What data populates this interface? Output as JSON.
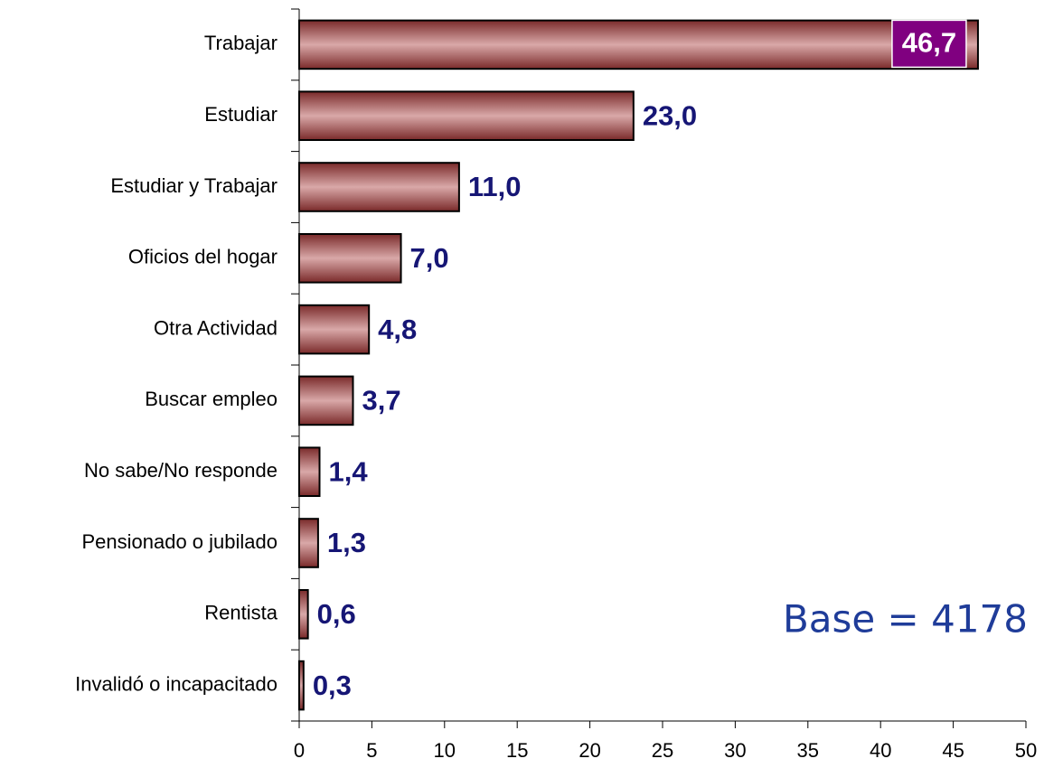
{
  "chart_data": {
    "type": "bar",
    "orientation": "horizontal",
    "categories": [
      "Trabajar",
      "Estudiar",
      "Estudiar y Trabajar",
      "Oficios del hogar",
      "Otra Actividad",
      "Buscar empleo",
      "No sabe/No responde",
      "Pensionado o jubilado",
      "Rentista",
      "Invalidó o incapacitado"
    ],
    "values": [
      46.7,
      23.0,
      11.0,
      7.0,
      4.8,
      3.7,
      1.4,
      1.3,
      0.6,
      0.3
    ],
    "value_labels": [
      "46,7",
      "23,0",
      "11,0",
      "7,0",
      "4,8",
      "3,7",
      "1,4",
      "1,3",
      "0,6",
      "0,3"
    ],
    "color": "#a84848",
    "xlim": [
      0,
      50
    ],
    "xticks": [
      0,
      5,
      10,
      15,
      20,
      25,
      30,
      35,
      40,
      45,
      50
    ],
    "annotation": "Base = 4178"
  }
}
